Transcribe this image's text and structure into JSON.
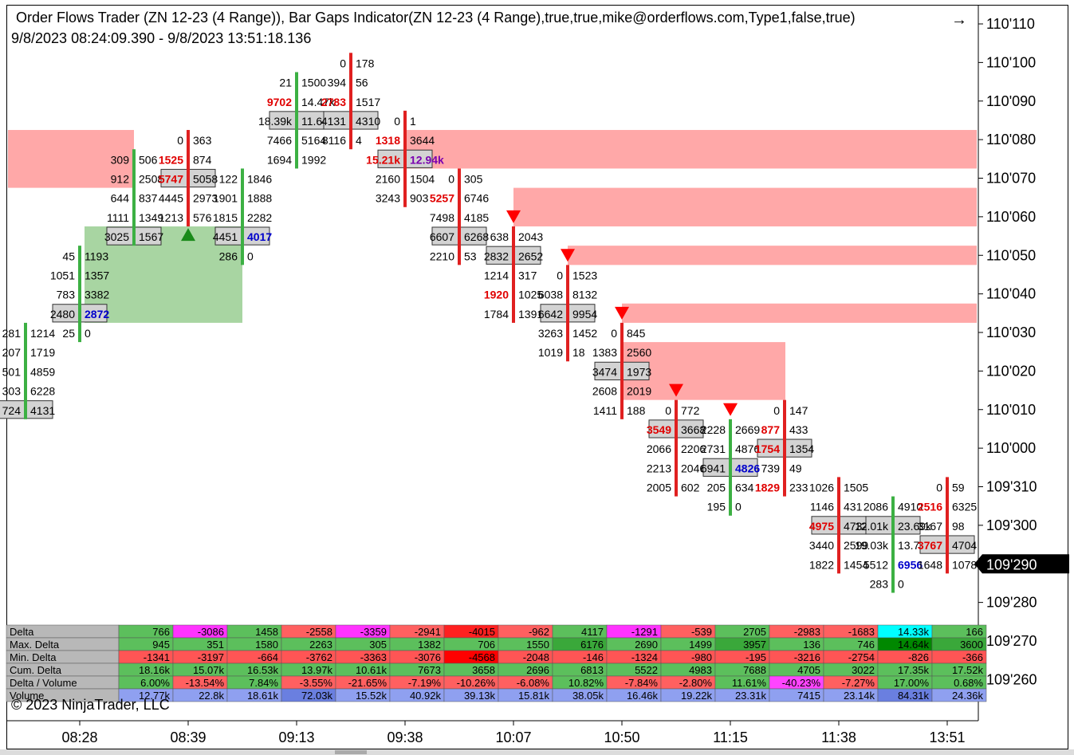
{
  "header": {
    "title": "Order Flows Trader (ZN 12-23 (4 Range)), Bar Gaps Indicator(ZN 12-23 (4 Range),true,true,mike@orderflows.com,Type1,false,true)",
    "date_range": "9/8/2023 08:24:09.390 - 9/8/2023 13:51:18.136",
    "arrow_icon": "→"
  },
  "copyright": "© 2023 NinjaTrader, LLC",
  "colors": {
    "up_bar": "#3cb043",
    "down_bar": "#e02020",
    "gap_up": "#a8d5a2",
    "gap_down": "#ffa8a8",
    "arrow_up": "#1a8a1a",
    "arrow_down": "#ff0000",
    "poc_box": "#d3d3d3",
    "price_tag_bg": "#000000"
  },
  "chart_data": {
    "type": "table",
    "instrument": "ZN 12-23 (4 Range)",
    "y_axis": {
      "ticks": [
        "110'110",
        "110'100",
        "110'090",
        "110'080",
        "110'070",
        "110'060",
        "110'050",
        "110'040",
        "110'030",
        "110'020",
        "110'010",
        "110'000",
        "109'310",
        "109'300",
        "109'290",
        "109'280",
        "109'270",
        "109'260"
      ],
      "current_price": "109'290"
    },
    "x_axis": {
      "ticks": [
        "08:28",
        "08:39",
        "09:13",
        "09:38",
        "10:07",
        "10:50",
        "11:15",
        "11:38",
        "13:51"
      ]
    },
    "bars": [
      {
        "dir": "up",
        "top": "110'030",
        "bottom": "110'010",
        "poc": "110'010",
        "rows": [
          {
            "p": "110'030",
            "b": "281",
            "a": "1214"
          },
          {
            "p": "110'025",
            "b": "207",
            "a": "1719"
          },
          {
            "p": "110'020",
            "b": "501",
            "a": "4859"
          },
          {
            "p": "110'015",
            "b": "303",
            "a": "6228"
          },
          {
            "p": "110'010",
            "b": "724",
            "a": "4131"
          }
        ]
      },
      {
        "dir": "up",
        "top": "110'050",
        "bottom": "110'030",
        "poc": "110'035",
        "rows": [
          {
            "p": "110'050",
            "b": "45",
            "a": "1193"
          },
          {
            "p": "110'045",
            "b": "1051",
            "a": "1357"
          },
          {
            "p": "110'040",
            "b": "783",
            "a": "3382"
          },
          {
            "p": "110'035",
            "b": "2480",
            "a": "2872",
            "ac": "blue"
          },
          {
            "p": "110'030",
            "b": "25",
            "a": "0"
          }
        ]
      },
      {
        "dir": "up",
        "top": "110'075",
        "bottom": "110'055",
        "poc": "110'055",
        "rows": [
          {
            "p": "110'075",
            "b": "309",
            "a": "506"
          },
          {
            "p": "110'070",
            "b": "912",
            "a": "2508"
          },
          {
            "p": "110'065",
            "b": "644",
            "a": "837"
          },
          {
            "p": "110'060",
            "b": "1111",
            "a": "1349"
          },
          {
            "p": "110'055",
            "b": "3025",
            "a": "1567"
          }
        ]
      },
      {
        "dir": "down",
        "top": "110'080",
        "bottom": "110'060",
        "poc": "110'070",
        "rows": [
          {
            "p": "110'080",
            "b": "0",
            "a": "363"
          },
          {
            "p": "110'075",
            "b": "1525",
            "a": "874",
            "bc": "red"
          },
          {
            "p": "110'070",
            "b": "5747",
            "a": "5058",
            "bc": "red"
          },
          {
            "p": "110'065",
            "b": "4445",
            "a": "2973"
          },
          {
            "p": "110'060",
            "b": "1213",
            "a": "576"
          }
        ]
      },
      {
        "dir": "up",
        "top": "110'070",
        "bottom": "110'050",
        "poc": "110'055",
        "rows": [
          {
            "p": "110'070",
            "b": "122",
            "a": "1846"
          },
          {
            "p": "110'065",
            "b": "1901",
            "a": "1888"
          },
          {
            "p": "110'060",
            "b": "1815",
            "a": "2282"
          },
          {
            "p": "110'055",
            "b": "4451",
            "a": "4017",
            "ac": "blue"
          },
          {
            "p": "110'050",
            "b": "286",
            "a": "0"
          }
        ]
      },
      {
        "dir": "up",
        "top": "110'095",
        "bottom": "110'075",
        "poc": "110'085",
        "rows": [
          {
            "p": "110'095",
            "b": "21",
            "a": "1500"
          },
          {
            "p": "110'090",
            "b": "9702",
            "a": "14.47k",
            "bc": "red"
          },
          {
            "p": "110'085",
            "b": "18.39k",
            "a": "11.64k"
          },
          {
            "p": "110'080",
            "b": "7466",
            "a": "5164"
          },
          {
            "p": "110'075",
            "b": "1694",
            "a": "1992"
          }
        ]
      },
      {
        "dir": "down",
        "top": "110'100",
        "bottom": "110'080",
        "poc": "110'085",
        "rows": [
          {
            "p": "110'100",
            "b": "0",
            "a": "178"
          },
          {
            "p": "110'095",
            "b": "394",
            "a": "56"
          },
          {
            "p": "110'090",
            "b": "2783",
            "a": "1517",
            "bc": "red"
          },
          {
            "p": "110'085",
            "b": "4131",
            "a": "4310"
          },
          {
            "p": "110'080",
            "b": "8116",
            "a": "4"
          }
        ]
      },
      {
        "dir": "down",
        "top": "110'085",
        "bottom": "110'065",
        "poc": "110'075",
        "rows": [
          {
            "p": "110'085",
            "b": "0",
            "a": "1"
          },
          {
            "p": "110'080",
            "b": "1318",
            "a": "3644",
            "bc": "red"
          },
          {
            "p": "110'075",
            "b": "15.21k",
            "a": "12.94k",
            "bc": "red",
            "ac": "purple"
          },
          {
            "p": "110'070",
            "b": "2160",
            "a": "1504"
          },
          {
            "p": "110'065",
            "b": "3243",
            "a": "903"
          }
        ]
      },
      {
        "dir": "down",
        "top": "110'070",
        "bottom": "110'050",
        "poc": "110'055",
        "rows": [
          {
            "p": "110'070",
            "b": "0",
            "a": "305"
          },
          {
            "p": "110'065",
            "b": "5257",
            "a": "6746",
            "bc": "red"
          },
          {
            "p": "110'060",
            "b": "7498",
            "a": "4185"
          },
          {
            "p": "110'055",
            "b": "6607",
            "a": "6268"
          },
          {
            "p": "110'050",
            "b": "2210",
            "a": "53"
          }
        ]
      },
      {
        "dir": "down",
        "top": "110'055",
        "bottom": "110'035",
        "poc": "110'050",
        "rows": [
          {
            "p": "110'055",
            "b": "638",
            "a": "2043"
          },
          {
            "p": "110'050",
            "b": "2832",
            "a": "2652"
          },
          {
            "p": "110'045",
            "b": "1214",
            "a": "317"
          },
          {
            "p": "110'040",
            "b": "1920",
            "a": "1025",
            "bc": "red"
          },
          {
            "p": "110'035",
            "b": "1784",
            "a": "1391"
          }
        ]
      },
      {
        "dir": "down",
        "top": "110'045",
        "bottom": "110'025",
        "poc": "110'035",
        "rows": [
          {
            "p": "110'045",
            "b": "0",
            "a": "1523"
          },
          {
            "p": "110'040",
            "b": "6038",
            "a": "8132"
          },
          {
            "p": "110'035",
            "b": "6642",
            "a": "9954"
          },
          {
            "p": "110'030",
            "b": "3263",
            "a": "1452"
          },
          {
            "p": "110'025",
            "b": "1019",
            "a": "18"
          }
        ]
      },
      {
        "dir": "down",
        "top": "110'030",
        "bottom": "110'010",
        "poc": "110'020",
        "rows": [
          {
            "p": "110'030",
            "b": "0",
            "a": "845"
          },
          {
            "p": "110'025",
            "b": "1383",
            "a": "2560"
          },
          {
            "p": "110'020",
            "b": "3474",
            "a": "1973"
          },
          {
            "p": "110'015",
            "b": "2608",
            "a": "2019"
          },
          {
            "p": "110'010",
            "b": "1411",
            "a": "188"
          }
        ]
      },
      {
        "dir": "down",
        "top": "110'010",
        "bottom": "109'310",
        "poc": "110'005",
        "rows": [
          {
            "p": "110'010",
            "b": "0",
            "a": "772"
          },
          {
            "p": "110'005",
            "b": "3549",
            "a": "3668",
            "bc": "red"
          },
          {
            "p": "110'000",
            "b": "2066",
            "a": "2206"
          },
          {
            "p": "109'315",
            "b": "2213",
            "a": "2046"
          },
          {
            "p": "109'310",
            "b": "2005",
            "a": "602"
          }
        ]
      },
      {
        "dir": "up",
        "top": "110'005",
        "bottom": "109'305",
        "poc": "109'315",
        "rows": [
          {
            "p": "110'005",
            "b": "2228",
            "a": "2669"
          },
          {
            "p": "110'000",
            "b": "2731",
            "a": "4876"
          },
          {
            "p": "109'315",
            "b": "6941",
            "a": "4826",
            "ac": "blue"
          },
          {
            "p": "109'310",
            "b": "205",
            "a": "634"
          },
          {
            "p": "109'305",
            "b": "195",
            "a": "0"
          }
        ]
      },
      {
        "dir": "down",
        "top": "110'010",
        "bottom": "109'310",
        "poc": "110'000",
        "rows": [
          {
            "p": "110'010",
            "b": "0",
            "a": "147"
          },
          {
            "p": "110'005",
            "b": "877",
            "a": "433",
            "bc": "red"
          },
          {
            "p": "110'000",
            "b": "1754",
            "a": "1354",
            "bc": "red"
          },
          {
            "p": "109'315",
            "b": "739",
            "a": "49"
          },
          {
            "p": "109'310",
            "b": "1829",
            "a": "233",
            "bc": "red"
          }
        ]
      },
      {
        "dir": "down",
        "top": "109'310",
        "bottom": "109'290",
        "poc": "109'300",
        "rows": [
          {
            "p": "109'310",
            "b": "1026",
            "a": "1505"
          },
          {
            "p": "109'305",
            "b": "1146",
            "a": "431"
          },
          {
            "p": "109'300",
            "b": "4975",
            "a": "4732",
            "bc": "red"
          },
          {
            "p": "109'295",
            "b": "3440",
            "a": "2599"
          },
          {
            "p": "109'290",
            "b": "1822",
            "a": "1454"
          }
        ]
      },
      {
        "dir": "up",
        "top": "109'305",
        "bottom": "109'285",
        "poc": "109'300",
        "rows": [
          {
            "p": "109'305",
            "b": "2086",
            "a": "4910"
          },
          {
            "p": "109'300",
            "b": "12.01k",
            "a": "23.69k"
          },
          {
            "p": "109'295",
            "b": "19.03k",
            "a": "13.79k"
          },
          {
            "p": "109'290",
            "b": "5512",
            "a": "6956",
            "ac": "blue"
          },
          {
            "p": "109'285",
            "b": "283",
            "a": "0"
          }
        ]
      },
      {
        "dir": "down",
        "top": "109'310",
        "bottom": "109'290",
        "poc": "109'295",
        "rows": [
          {
            "p": "109'310",
            "b": "0",
            "a": "59"
          },
          {
            "p": "109'305",
            "b": "2516",
            "a": "6325",
            "bc": "red"
          },
          {
            "p": "109'300",
            "b": "3167",
            "a": "98"
          },
          {
            "p": "109'295",
            "b": "3767",
            "a": "4704",
            "bc": "red"
          },
          {
            "p": "109'290",
            "b": "1648",
            "a": "1078"
          }
        ]
      }
    ],
    "gap_zones": [
      {
        "type": "down",
        "from_bar": 0,
        "to_bar": 2,
        "top": "110'080",
        "bottom": "110'065"
      },
      {
        "type": "down",
        "from_bar": 7,
        "to_bar": 17,
        "top": "110'080",
        "bottom": "110'070"
      },
      {
        "type": "down",
        "from_bar": 9,
        "to_bar": 17,
        "top": "110'065",
        "bottom": "110'055"
      },
      {
        "type": "down",
        "from_bar": 10,
        "to_bar": 17,
        "top": "110'050",
        "bottom": "110'045"
      },
      {
        "type": "down",
        "from_bar": 11,
        "to_bar": 17,
        "top": "110'035",
        "bottom": "110'030"
      },
      {
        "type": "down",
        "from_bar": 11,
        "to_bar": 14,
        "top": "110'025",
        "bottom": "110'010"
      },
      {
        "type": "up",
        "from_bar": 1,
        "to_bar": 4,
        "top": "110'055",
        "bottom": "110'030"
      }
    ],
    "signals": [
      {
        "bar": 3,
        "dir": "up",
        "price": "110'055"
      },
      {
        "bar": 9,
        "dir": "down",
        "price": "110'060"
      },
      {
        "bar": 10,
        "dir": "down",
        "price": "110'050"
      },
      {
        "bar": 11,
        "dir": "down",
        "price": "110'035"
      },
      {
        "bar": 12,
        "dir": "down",
        "price": "110'015"
      },
      {
        "bar": 13,
        "dir": "down",
        "price": "110'010"
      }
    ],
    "stats_table": {
      "row_labels": [
        "Delta",
        "Max. Delta",
        "Min. Delta",
        "Cum. Delta",
        "Delta / Volume",
        "Volume"
      ],
      "columns": [
        {
          "delta": "766",
          "max": "945",
          "min": "-1341",
          "cum": "18.16k",
          "dv": "6.00%",
          "vol": "12.77k"
        },
        {
          "delta": "-3086",
          "max": "351",
          "min": "-3197",
          "cum": "15.07k",
          "dv": "-13.54%",
          "vol": "22.8k"
        },
        {
          "delta": "1458",
          "max": "1580",
          "min": "-664",
          "cum": "16.53k",
          "dv": "7.84%",
          "vol": "18.61k"
        },
        {
          "delta": "-2558",
          "max": "2263",
          "min": "-3762",
          "cum": "13.97k",
          "dv": "-3.55%",
          "vol": "72.03k"
        },
        {
          "delta": "-3359",
          "max": "305",
          "min": "-3363",
          "cum": "10.61k",
          "dv": "-21.65%",
          "vol": "15.52k"
        },
        {
          "delta": "-2941",
          "max": "1382",
          "min": "-3076",
          "cum": "7673",
          "dv": "-7.19%",
          "vol": "40.92k"
        },
        {
          "delta": "-4015",
          "max": "706",
          "min": "-4568",
          "cum": "3658",
          "dv": "-10.26%",
          "vol": "39.13k"
        },
        {
          "delta": "-962",
          "max": "1550",
          "min": "-2048",
          "cum": "2696",
          "dv": "-6.08%",
          "vol": "15.81k"
        },
        {
          "delta": "4117",
          "max": "6176",
          "min": "-146",
          "cum": "6813",
          "dv": "10.82%",
          "vol": "38.05k"
        },
        {
          "delta": "-1291",
          "max": "2690",
          "min": "-1324",
          "cum": "5522",
          "dv": "-7.84%",
          "vol": "16.46k"
        },
        {
          "delta": "-539",
          "max": "1499",
          "min": "-980",
          "cum": "4983",
          "dv": "-2.80%",
          "vol": "19.22k"
        },
        {
          "delta": "2705",
          "max": "3957",
          "min": "-195",
          "cum": "7688",
          "dv": "11.61%",
          "vol": "23.31k"
        },
        {
          "delta": "-2983",
          "max": "136",
          "min": "-3216",
          "cum": "4705",
          "dv": "-40.23%",
          "vol": "7415"
        },
        {
          "delta": "-1683",
          "max": "746",
          "min": "-2754",
          "cum": "3022",
          "dv": "-7.27%",
          "vol": "23.14k"
        },
        {
          "delta": "14.33k",
          "max": "14.64k",
          "min": "-826",
          "cum": "17.35k",
          "dv": "17.00%",
          "vol": "84.31k"
        },
        {
          "delta": "166",
          "max": "3600",
          "min": "-366",
          "cum": "17.52k",
          "dv": "0.68%",
          "vol": "24.36k"
        }
      ]
    }
  }
}
